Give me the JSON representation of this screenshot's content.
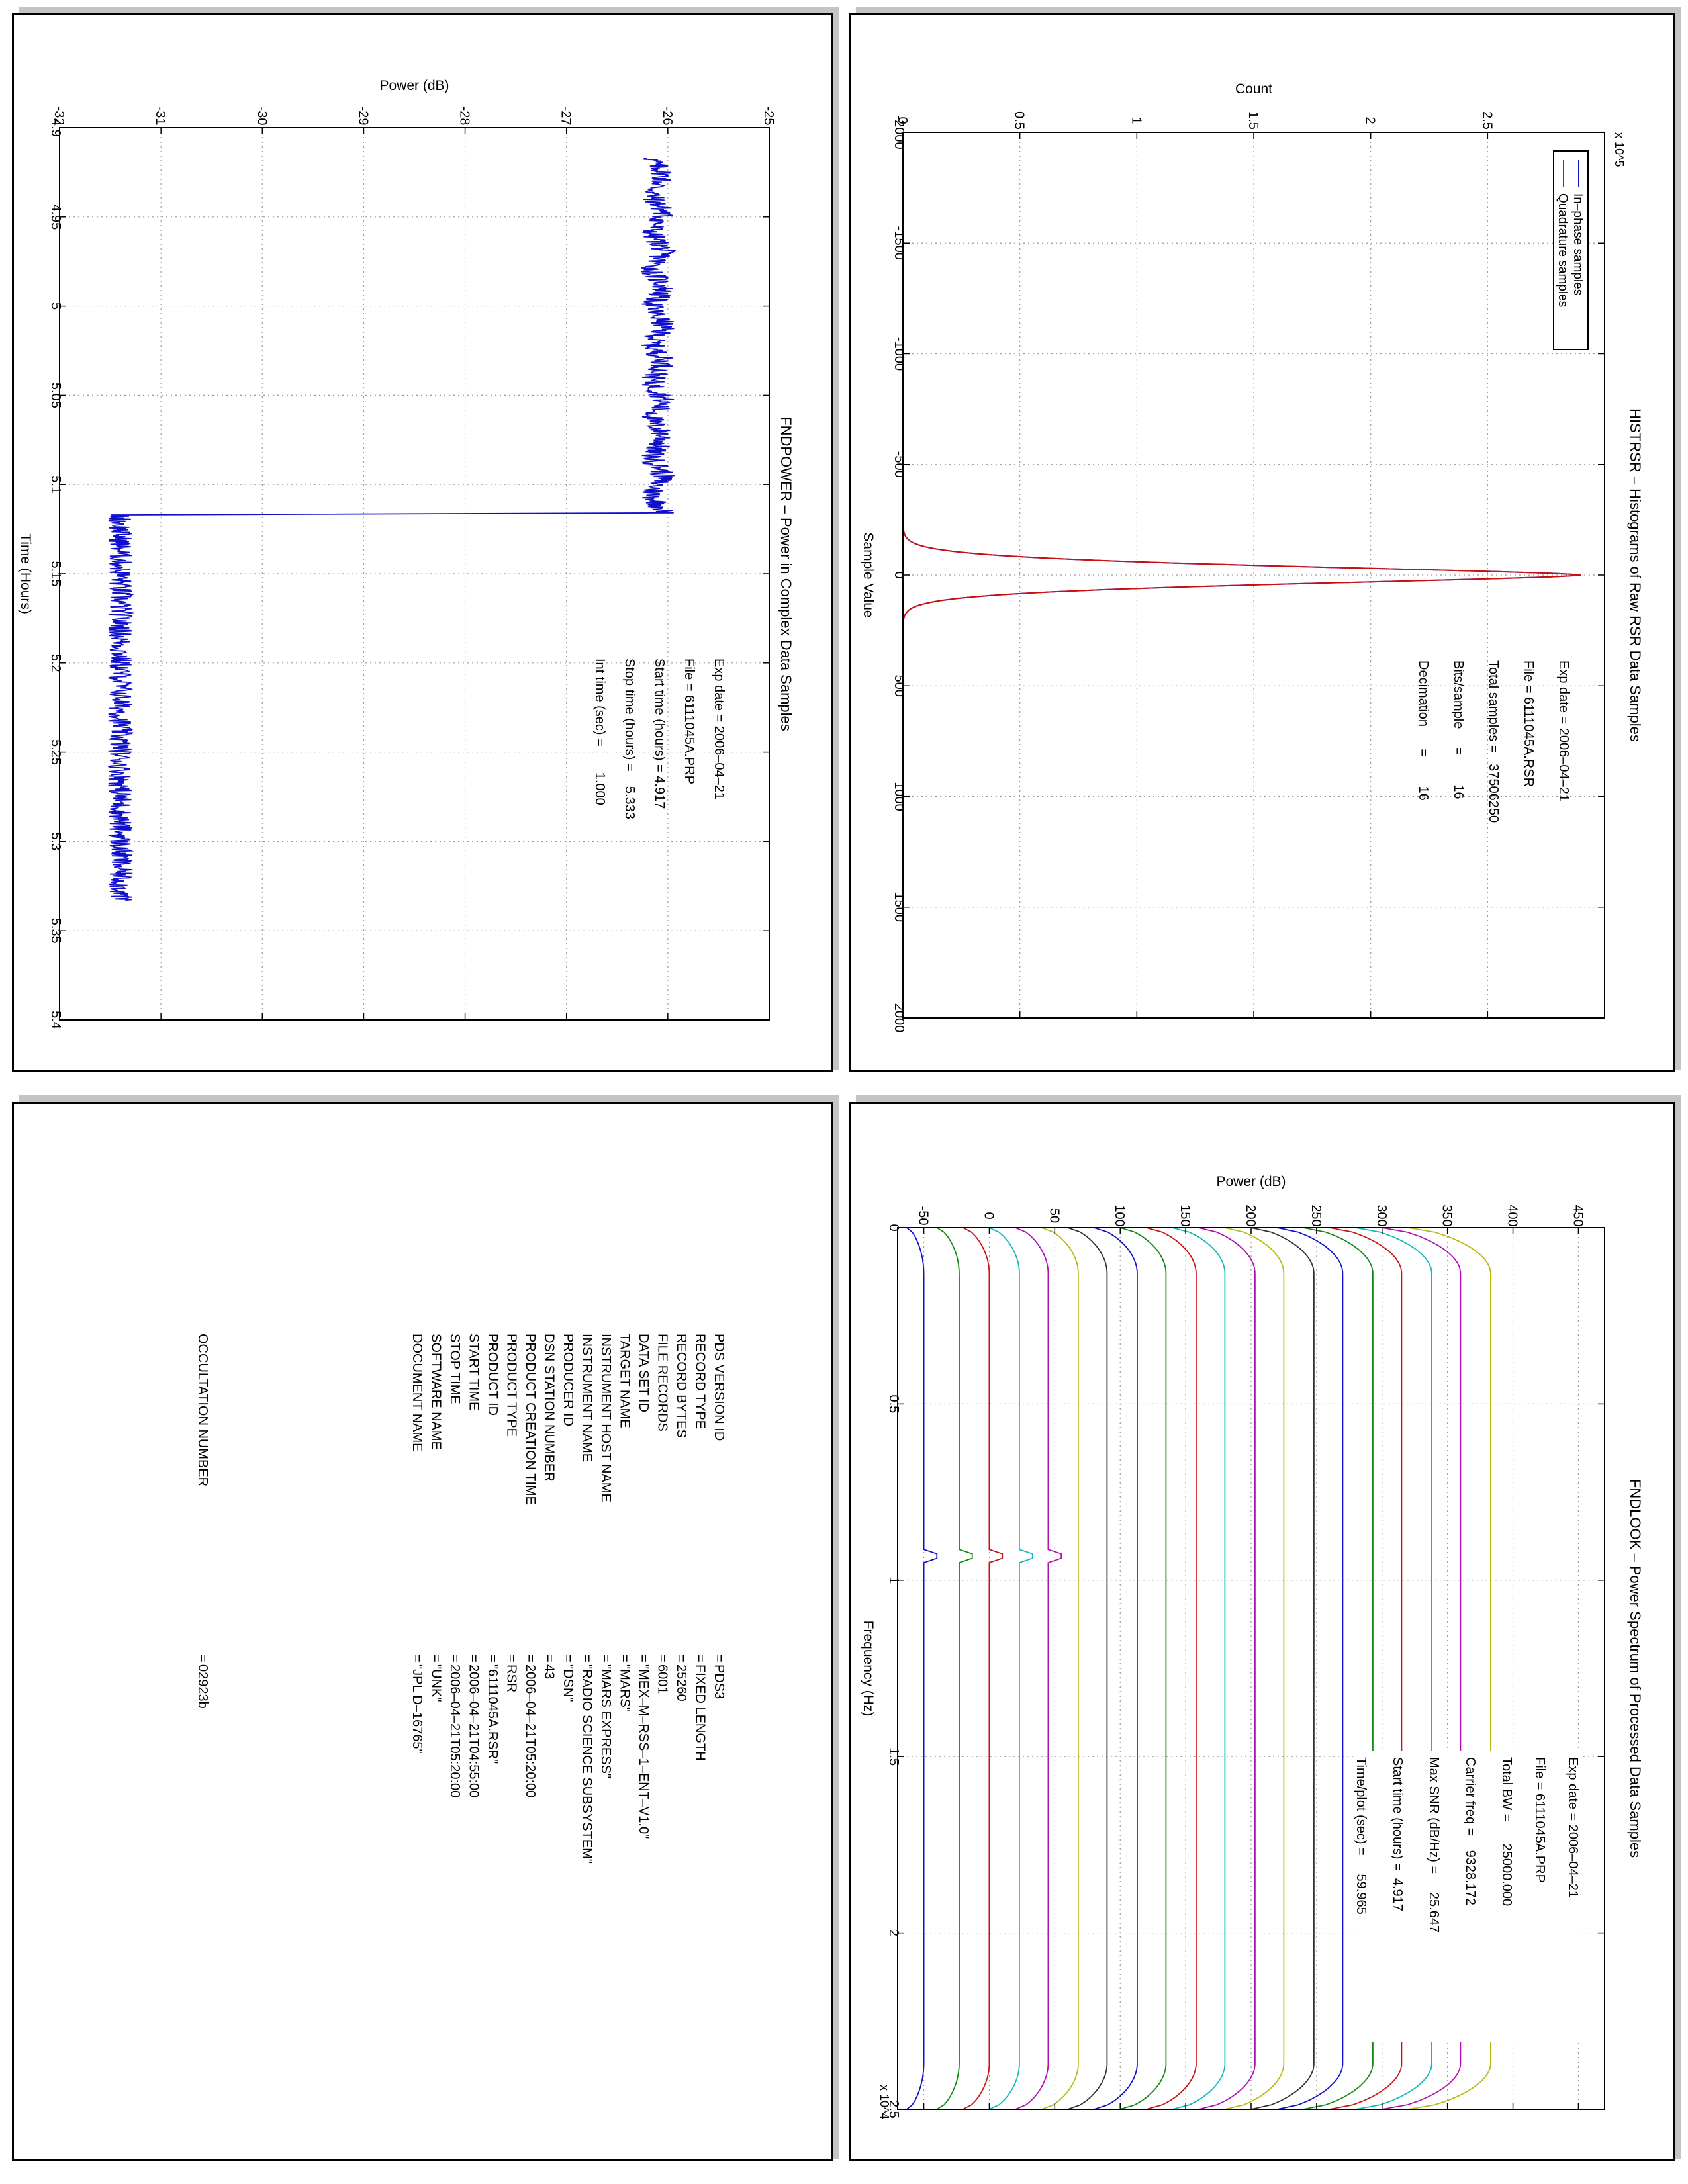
{
  "chart_data": [
    {
      "type": "line",
      "title": "HISTRSR – Histograms of Raw RSR Data Samples",
      "xlabel": "Sample Value",
      "ylabel": "Count",
      "y_multiplier": "x 10^5",
      "xlim": [
        -2000,
        2000
      ],
      "ylim": [
        0,
        3
      ],
      "x_ticks": [
        "-2000",
        "-1500",
        "-1000",
        "-500",
        "0",
        "500",
        "1000",
        "1500",
        "2000"
      ],
      "y_ticks": [
        "0",
        "0.5",
        "1",
        "1.5",
        "2",
        "2.5"
      ],
      "grid": true,
      "legend_position": "top-right",
      "series": [
        {
          "name": "In–phase samples",
          "color": "#1010cc",
          "x": [
            -2000,
            -300,
            -200,
            -150,
            -100,
            -75,
            -50,
            -25,
            0,
            25,
            50,
            75,
            100,
            150,
            200,
            300,
            2000
          ],
          "values": [
            0,
            0.001,
            0.02,
            0.08,
            0.3,
            0.7,
            1.55,
            2.45,
            2.9,
            2.45,
            1.55,
            0.7,
            0.3,
            0.08,
            0.02,
            0.001,
            0
          ]
        },
        {
          "name": "Quadrature samples",
          "color": "#cc1010",
          "x": [
            -2000,
            -300,
            -200,
            -150,
            -100,
            -75,
            -50,
            -25,
            0,
            25,
            50,
            75,
            100,
            150,
            200,
            300,
            2000
          ],
          "values": [
            0,
            0.001,
            0.02,
            0.08,
            0.3,
            0.7,
            1.55,
            2.45,
            2.9,
            2.45,
            1.55,
            0.7,
            0.3,
            0.08,
            0.02,
            0.001,
            0
          ]
        }
      ],
      "info": {
        "exp_date": "Exp date = 2006–04–21",
        "file": "File = 6111045A.RSR",
        "total_samples": "Total samples =   37506250",
        "bits_sample": "Bits/sample     =        16",
        "decimation": "Decimation      =        16"
      }
    },
    {
      "type": "line",
      "title": "FNDPOWER – Power in Complex Data Samples",
      "xlabel": "Time (Hours)",
      "ylabel": "Power (dB)",
      "xlim": [
        4.9,
        5.4
      ],
      "ylim": [
        -32,
        -25
      ],
      "x_ticks": [
        "4.9",
        "4.95",
        "5",
        "5.05",
        "5.1",
        "5.15",
        "5.2",
        "5.25",
        "5.3",
        "5.35",
        "5.4"
      ],
      "y_ticks": [
        "-32",
        "-31",
        "-30",
        "-29",
        "-28",
        "-27",
        "-26",
        "-25"
      ],
      "grid": true,
      "series": [
        {
          "name": "",
          "color": "#1010cc",
          "x": [
            4.917,
            5.116,
            5.117,
            5.333
          ],
          "values": [
            -26.1,
            -26.1,
            -31.4,
            -31.4
          ],
          "noise_db": 0.12
        }
      ],
      "info": {
        "exp_date": "Exp date = 2006–04–21",
        "file": "File = 6111045A.PRP",
        "start_time": "Start time (hours) = 4.917",
        "stop_time": "Stop time (hours) =    5.333",
        "int_time": "Int time (sec) =       1.000"
      }
    },
    {
      "type": "line",
      "title": "FNDLOOK – Power Spectrum of Processed Data Samples",
      "xlabel": "Frequency (Hz)",
      "ylabel": "Power (dB)",
      "x_multiplier": "x 10^4",
      "xlim": [
        0,
        25000
      ],
      "ylim": [
        -70,
        470
      ],
      "x_ticks": [
        "0",
        "0.5",
        "1",
        "1.5",
        "2",
        "2.5"
      ],
      "y_ticks": [
        "-50",
        "0",
        "50",
        "100",
        "150",
        "200",
        "250",
        "300",
        "350",
        "400",
        "450"
      ],
      "grid": true,
      "spectra": {
        "count": 20,
        "bottom_levels": [
          -63,
          -40,
          -20,
          0,
          20,
          40,
          60,
          80,
          100,
          120,
          140,
          160,
          180,
          200,
          220,
          240,
          260,
          280,
          300,
          320
        ],
        "top_levels": [
          -50,
          -23,
          0,
          23,
          45,
          68,
          90,
          113,
          135,
          158,
          180,
          203,
          225,
          248,
          270,
          293,
          315,
          338,
          360,
          383
        ],
        "colors": [
          "#1010cc",
          "#118811",
          "#cc1010",
          "#10b8b8",
          "#b010b0",
          "#b8b810",
          "#333333"
        ],
        "spike_hz": 9328,
        "spike_traces": [
          0,
          1,
          2,
          3,
          4
        ]
      },
      "info": {
        "exp_date": "Exp date = 2006–04–21",
        "file": "File = 6111045A.PRP",
        "total_bw": "Total BW =      25000.000",
        "carrier_freq": "Carrier freq =    9328.172",
        "max_snr": "Max SNR (dB/Hz) =     25.647",
        "start_time": "Start time (hours) =  4.917",
        "time_plot": "Time/plot (sec) =     59.965"
      }
    }
  ],
  "label_table": {
    "keys": [
      "PDS VERSION ID",
      "RECORD TYPE",
      "RECORD BYTES",
      "FILE RECORDS",
      "DATA SET ID",
      "TARGET NAME",
      "INSTRUMENT HOST NAME",
      "INSTRUMENT NAME",
      "PRODUCER ID",
      "DSN STATION NUMBER",
      "PRODUCT CREATION TIME",
      "PRODUCT TYPE",
      "PRODUCT ID",
      "START TIME",
      "STOP TIME",
      "SOFTWARE NAME",
      "DOCUMENT NAME"
    ],
    "values": [
      "PDS3",
      "FIXED LENGTH",
      "25260",
      "6001",
      "\"MEX–M–RSS–1–ENT–V1.0\"",
      "\"MARS\"",
      "\"MARS EXPRESS\"",
      "\"RADIO SCIENCE SUBSYSTEM\"",
      "\"DSN\"",
      "43",
      "2006–04–21T05:20:00",
      "RSR",
      "\"6111045A.RSR\"",
      "2006–04–21T04:55:00",
      "2006–04–21T05:20:00",
      "\"UNK\"",
      "\"JPL D–16765\""
    ],
    "occultation_key": "OCCULTATION NUMBER",
    "occultation_value": "02923b",
    "eq": "="
  }
}
